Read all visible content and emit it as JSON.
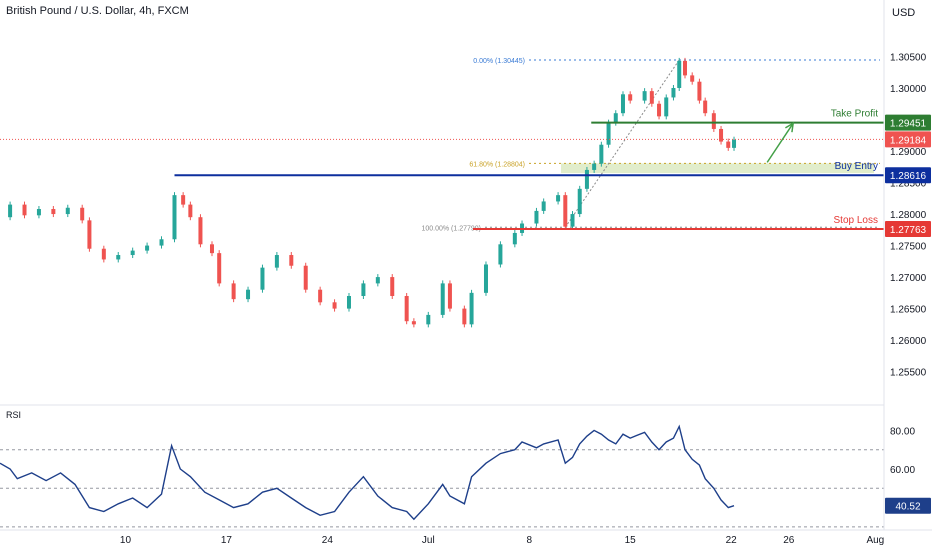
{
  "header": {
    "title": "British Pound / U.S. Dollar, 4h, FXCM",
    "currency": "USD"
  },
  "chart_data": {
    "type": "candlestick",
    "title": "British Pound / U.S. Dollar, 4h, FXCM",
    "y_axis": {
      "ticks": [
        "1.25500",
        "1.26000",
        "1.26500",
        "1.27000",
        "1.27500",
        "1.28000",
        "1.28500",
        "1.29000",
        "1.29500",
        "1.30000",
        "1.30500"
      ],
      "range": [
        1.2505,
        1.3092
      ]
    },
    "x_axis": {
      "ticks": [
        {
          "label": "10",
          "x": 10
        },
        {
          "label": "17",
          "x": 17
        },
        {
          "label": "24",
          "x": 24
        },
        {
          "label": "Jul",
          "x": 31
        },
        {
          "label": "8",
          "x": 38
        },
        {
          "label": "15",
          "x": 45
        },
        {
          "label": "22",
          "x": 52
        },
        {
          "label": "26",
          "x": 56
        },
        {
          "label": "Aug",
          "x": 62
        }
      ],
      "range": [
        1.3,
        62.6
      ]
    },
    "series": [
      {
        "name": "price",
        "points": [
          [
            1.3,
            1.2795
          ],
          [
            2.0,
            1.2815
          ],
          [
            3.0,
            1.2798
          ],
          [
            4.0,
            1.2808
          ],
          [
            5.0,
            1.28
          ],
          [
            6.0,
            1.281
          ],
          [
            7.0,
            1.279
          ],
          [
            7.5,
            1.2745
          ],
          [
            8.5,
            1.2728
          ],
          [
            9.5,
            1.2735
          ],
          [
            10.5,
            1.2742
          ],
          [
            11.5,
            1.275
          ],
          [
            12.5,
            1.276
          ],
          [
            13.4,
            1.283
          ],
          [
            14.0,
            1.2815
          ],
          [
            14.5,
            1.2795
          ],
          [
            15.2,
            1.2752
          ],
          [
            16.0,
            1.2738
          ],
          [
            16.5,
            1.269
          ],
          [
            17.5,
            1.2665
          ],
          [
            18.5,
            1.268
          ],
          [
            19.5,
            1.2715
          ],
          [
            20.5,
            1.2735
          ],
          [
            21.5,
            1.2718
          ],
          [
            22.5,
            1.268
          ],
          [
            23.5,
            1.266
          ],
          [
            24.5,
            1.265
          ],
          [
            25.5,
            1.267
          ],
          [
            26.5,
            1.269
          ],
          [
            27.5,
            1.27
          ],
          [
            28.5,
            1.267
          ],
          [
            29.5,
            1.263
          ],
          [
            30.0,
            1.2625
          ],
          [
            31.0,
            1.264
          ],
          [
            32.0,
            1.269
          ],
          [
            32.5,
            1.265
          ],
          [
            33.5,
            1.2625
          ],
          [
            34.0,
            1.2675
          ],
          [
            35.0,
            1.272
          ],
          [
            36.0,
            1.2752
          ],
          [
            37.0,
            1.277
          ],
          [
            37.5,
            1.2785
          ],
          [
            38.5,
            1.2805
          ],
          [
            39.0,
            1.282
          ],
          [
            40.0,
            1.283
          ],
          [
            40.5,
            1.278
          ],
          [
            41.0,
            1.28
          ],
          [
            41.5,
            1.284
          ],
          [
            42.0,
            1.287
          ],
          [
            42.5,
            1.288
          ],
          [
            43.0,
            1.291
          ],
          [
            43.5,
            1.2945
          ],
          [
            44.0,
            1.296
          ],
          [
            44.5,
            1.299
          ],
          [
            45.0,
            1.298
          ],
          [
            46.0,
            1.2995
          ],
          [
            46.5,
            1.2975
          ],
          [
            47.0,
            1.2955
          ],
          [
            47.5,
            1.2985
          ],
          [
            48.0,
            1.3
          ],
          [
            48.4,
            1.3043
          ],
          [
            48.8,
            1.302
          ],
          [
            49.3,
            1.301
          ],
          [
            49.8,
            1.298
          ],
          [
            50.2,
            1.296
          ],
          [
            50.8,
            1.2935
          ],
          [
            51.3,
            1.2915
          ],
          [
            51.8,
            1.2905
          ],
          [
            52.2,
            1.2918
          ]
        ]
      }
    ],
    "horizontal_levels": [
      {
        "label": "Take Profit",
        "value": 1.29451,
        "value_text": "1.29451",
        "color": "#2e7d32",
        "x_start": 42.3
      },
      {
        "label": "Buy Entry",
        "value": 1.28616,
        "value_text": "1.28616",
        "color": "#0d2f9e",
        "x_start": 13.4
      },
      {
        "label": "Stop Loss",
        "value": 1.27763,
        "value_text": "1.27763",
        "color": "#e53935",
        "x_start": 34.1
      },
      {
        "label": "",
        "value": 1.29184,
        "value_text": "1.29184",
        "color": "#ef5350",
        "x_start": 1.3,
        "dotted": true
      }
    ],
    "fibonacci": [
      {
        "label": "0.00% (1.30445)",
        "value": 1.30445
      },
      {
        "label": "61.80% (1.28804)",
        "value": 1.28804
      },
      {
        "label": "100.00% (1.27790)",
        "value": 1.2779
      }
    ],
    "fib_zone": {
      "from": 1.28804,
      "to": 1.2865,
      "x_start": 40.2
    },
    "projection_arrow": {
      "from": [
        54.5,
        1.2882
      ],
      "to": [
        56.3,
        1.2944
      ]
    },
    "rsi": {
      "label": "RSI",
      "ticks": [
        "80.00",
        "60.00"
      ],
      "range": [
        31,
        89
      ],
      "levels": [
        70,
        50,
        30
      ],
      "current_text": "40.52",
      "points": [
        [
          1.3,
          63
        ],
        [
          2.0,
          60
        ],
        [
          2.5,
          55
        ],
        [
          3.5,
          58
        ],
        [
          4.5,
          54
        ],
        [
          5.5,
          58
        ],
        [
          6.5,
          52
        ],
        [
          7.5,
          40
        ],
        [
          8.5,
          38
        ],
        [
          9.5,
          42
        ],
        [
          10.5,
          45
        ],
        [
          11.5,
          40
        ],
        [
          12.5,
          47
        ],
        [
          13.2,
          72
        ],
        [
          13.8,
          60
        ],
        [
          14.5,
          56
        ],
        [
          15.5,
          48
        ],
        [
          16.5,
          44
        ],
        [
          17.5,
          40
        ],
        [
          18.5,
          42
        ],
        [
          19.5,
          48
        ],
        [
          20.5,
          50
        ],
        [
          21.5,
          45
        ],
        [
          22.5,
          40
        ],
        [
          23.5,
          36
        ],
        [
          24.5,
          38
        ],
        [
          25.5,
          48
        ],
        [
          26.5,
          56
        ],
        [
          27.5,
          46
        ],
        [
          28.5,
          40
        ],
        [
          29.5,
          38
        ],
        [
          30.0,
          34
        ],
        [
          31.0,
          42
        ],
        [
          32.0,
          52
        ],
        [
          32.5,
          46
        ],
        [
          33.5,
          42
        ],
        [
          34.0,
          56
        ],
        [
          35.0,
          63
        ],
        [
          36.0,
          68
        ],
        [
          37.0,
          70
        ],
        [
          37.5,
          74
        ],
        [
          38.5,
          71
        ],
        [
          39.0,
          73
        ],
        [
          40.0,
          75
        ],
        [
          40.5,
          63
        ],
        [
          41.0,
          66
        ],
        [
          41.5,
          73
        ],
        [
          42.0,
          77
        ],
        [
          42.5,
          80
        ],
        [
          43.0,
          78
        ],
        [
          43.5,
          75
        ],
        [
          44.0,
          73
        ],
        [
          44.5,
          78
        ],
        [
          45.0,
          76
        ],
        [
          46.0,
          79
        ],
        [
          46.5,
          74
        ],
        [
          47.0,
          70
        ],
        [
          47.5,
          74
        ],
        [
          48.0,
          76
        ],
        [
          48.4,
          82
        ],
        [
          48.8,
          70
        ],
        [
          49.3,
          65
        ],
        [
          49.8,
          62
        ],
        [
          50.2,
          55
        ],
        [
          50.8,
          50
        ],
        [
          51.3,
          44
        ],
        [
          51.8,
          40
        ],
        [
          52.2,
          41
        ]
      ]
    }
  }
}
